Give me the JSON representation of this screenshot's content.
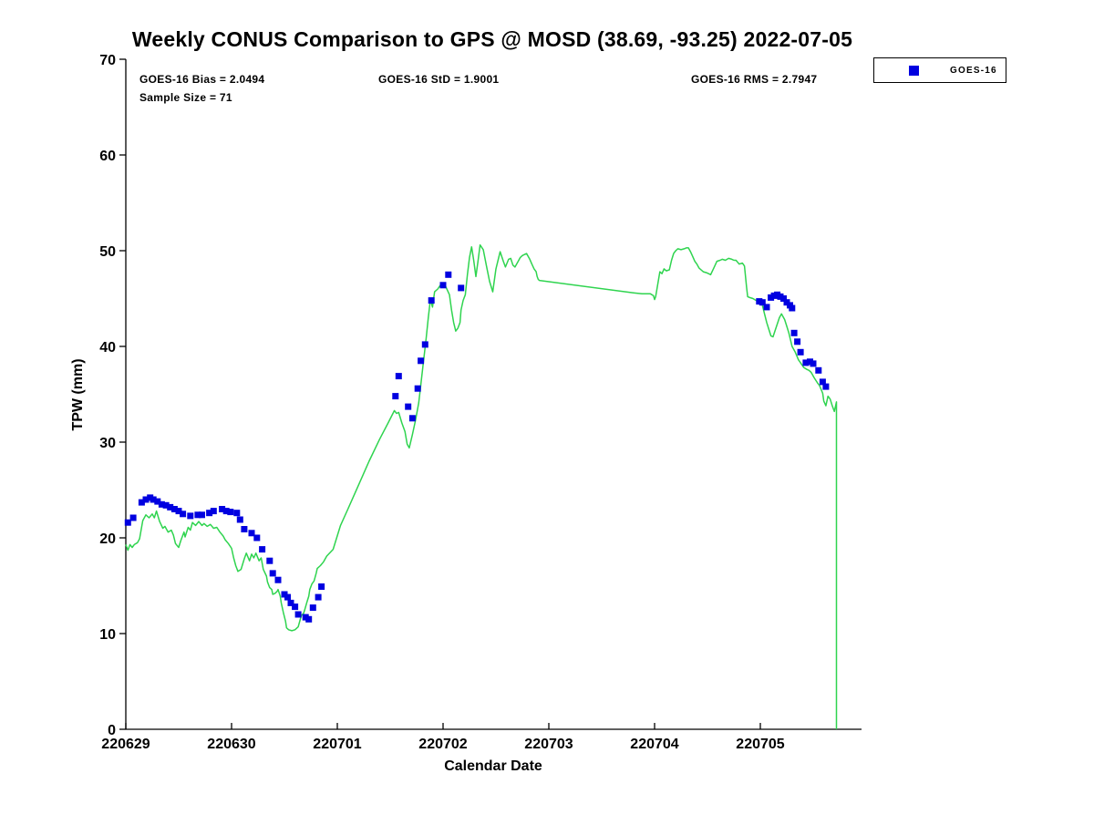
{
  "title": "Weekly CONUS Comparison to GPS @ MOSD (38.69, -93.25) 2022-07-05",
  "stats": {
    "bias": "GOES-16 Bias = 2.0494",
    "std": "GOES-16 StD = 1.9001",
    "rms": "GOES-16 RMS = 2.7947",
    "sample_size": "Sample Size = 71"
  },
  "axes": {
    "ylabel": "TPW (mm)",
    "xlabel": "Calendar Date"
  },
  "legend": {
    "entries": [
      {
        "label": "GOES-16",
        "marker_color": "#0000e0"
      }
    ]
  },
  "chart_data": {
    "type": "line",
    "title": "Weekly CONUS Comparison to GPS @ MOSD (38.69, -93.25) 2022-07-05",
    "xlabel": "Calendar Date",
    "ylabel": "TPW (mm)",
    "x_tick_labels": [
      "220629",
      "220630",
      "220701",
      "220702",
      "220703",
      "220704",
      "220705"
    ],
    "y_ticks": [
      0,
      10,
      20,
      30,
      40,
      50,
      60,
      70
    ],
    "ylim": [
      0,
      70
    ],
    "xlim_days": [
      0,
      6.96
    ],
    "grid": false,
    "legend_position": "top-right-outside",
    "stats": {
      "bias": 2.0494,
      "std": 1.9001,
      "rms": 2.7947,
      "sample_size": 71
    },
    "series": [
      {
        "name": "GPS",
        "type": "line",
        "color": "#2fd44f",
        "points": [
          [
            0.0,
            19.3
          ],
          [
            0.02,
            18.7
          ],
          [
            0.04,
            19.3
          ],
          [
            0.06,
            19.0
          ],
          [
            0.08,
            19.3
          ],
          [
            0.11,
            19.5
          ],
          [
            0.13,
            19.9
          ],
          [
            0.16,
            21.8
          ],
          [
            0.19,
            22.4
          ],
          [
            0.22,
            22.1
          ],
          [
            0.25,
            22.5
          ],
          [
            0.27,
            22.1
          ],
          [
            0.29,
            22.8
          ],
          [
            0.32,
            21.7
          ],
          [
            0.35,
            21.0
          ],
          [
            0.37,
            21.2
          ],
          [
            0.4,
            20.6
          ],
          [
            0.43,
            20.8
          ],
          [
            0.45,
            20.3
          ],
          [
            0.47,
            19.4
          ],
          [
            0.5,
            19.0
          ],
          [
            0.52,
            19.7
          ],
          [
            0.55,
            20.6
          ],
          [
            0.56,
            20.1
          ],
          [
            0.59,
            21.1
          ],
          [
            0.61,
            20.8
          ],
          [
            0.63,
            21.6
          ],
          [
            0.66,
            21.3
          ],
          [
            0.69,
            21.7
          ],
          [
            0.72,
            21.3
          ],
          [
            0.74,
            21.5
          ],
          [
            0.77,
            21.2
          ],
          [
            0.8,
            21.4
          ],
          [
            0.83,
            21.0
          ],
          [
            0.86,
            21.1
          ],
          [
            0.89,
            20.6
          ],
          [
            0.92,
            20.2
          ],
          [
            0.94,
            19.8
          ],
          [
            0.97,
            19.4
          ],
          [
            1.0,
            18.9
          ],
          [
            1.02,
            17.9
          ],
          [
            1.04,
            17.1
          ],
          [
            1.06,
            16.5
          ],
          [
            1.09,
            16.7
          ],
          [
            1.12,
            17.8
          ],
          [
            1.14,
            18.4
          ],
          [
            1.17,
            17.6
          ],
          [
            1.19,
            18.3
          ],
          [
            1.21,
            17.9
          ],
          [
            1.23,
            18.4
          ],
          [
            1.26,
            17.6
          ],
          [
            1.28,
            17.9
          ],
          [
            1.3,
            16.7
          ],
          [
            1.33,
            16.0
          ],
          [
            1.34,
            15.4
          ],
          [
            1.36,
            14.8
          ],
          [
            1.38,
            14.6
          ],
          [
            1.39,
            14.1
          ],
          [
            1.41,
            14.2
          ],
          [
            1.43,
            14.4
          ],
          [
            1.44,
            14.6
          ],
          [
            1.46,
            13.9
          ],
          [
            1.47,
            13.2
          ],
          [
            1.49,
            12.2
          ],
          [
            1.51,
            11.3
          ],
          [
            1.52,
            10.6
          ],
          [
            1.54,
            10.4
          ],
          [
            1.57,
            10.3
          ],
          [
            1.6,
            10.4
          ],
          [
            1.63,
            10.7
          ],
          [
            1.66,
            11.9
          ],
          [
            1.68,
            12.1
          ],
          [
            1.69,
            12.4
          ],
          [
            1.71,
            13.2
          ],
          [
            1.73,
            13.9
          ],
          [
            1.74,
            14.6
          ],
          [
            1.76,
            15.2
          ],
          [
            1.78,
            15.5
          ],
          [
            1.8,
            16.3
          ],
          [
            1.81,
            16.8
          ],
          [
            1.84,
            17.1
          ],
          [
            1.87,
            17.5
          ],
          [
            1.9,
            18.1
          ],
          [
            1.96,
            18.8
          ],
          [
            2.03,
            21.3
          ],
          [
            2.1,
            23.0
          ],
          [
            2.2,
            25.5
          ],
          [
            2.3,
            28.0
          ],
          [
            2.4,
            30.3
          ],
          [
            2.48,
            32.0
          ],
          [
            2.54,
            33.3
          ],
          [
            2.56,
            33.0
          ],
          [
            2.58,
            33.1
          ],
          [
            2.61,
            32.0
          ],
          [
            2.64,
            31.1
          ],
          [
            2.66,
            29.8
          ],
          [
            2.68,
            29.4
          ],
          [
            2.71,
            30.8
          ],
          [
            2.74,
            32.3
          ],
          [
            2.77,
            34.1
          ],
          [
            2.79,
            36.0
          ],
          [
            2.81,
            38.0
          ],
          [
            2.84,
            40.8
          ],
          [
            2.86,
            43.0
          ],
          [
            2.88,
            44.9
          ],
          [
            2.9,
            44.1
          ],
          [
            2.92,
            45.7
          ],
          [
            2.95,
            46.0
          ],
          [
            2.98,
            46.5
          ],
          [
            3.01,
            46.6
          ],
          [
            3.04,
            45.9
          ],
          [
            3.06,
            45.4
          ],
          [
            3.08,
            43.8
          ],
          [
            3.1,
            42.5
          ],
          [
            3.12,
            41.6
          ],
          [
            3.14,
            41.9
          ],
          [
            3.16,
            42.5
          ],
          [
            3.17,
            43.8
          ],
          [
            3.19,
            44.8
          ],
          [
            3.21,
            45.4
          ],
          [
            3.23,
            47.5
          ],
          [
            3.25,
            49.3
          ],
          [
            3.27,
            50.4
          ],
          [
            3.29,
            49.0
          ],
          [
            3.31,
            47.3
          ],
          [
            3.33,
            48.9
          ],
          [
            3.35,
            50.6
          ],
          [
            3.38,
            50.1
          ],
          [
            3.41,
            48.4
          ],
          [
            3.44,
            46.8
          ],
          [
            3.47,
            45.7
          ],
          [
            3.5,
            48.1
          ],
          [
            3.54,
            49.9
          ],
          [
            3.57,
            48.9
          ],
          [
            3.59,
            48.3
          ],
          [
            3.62,
            49.1
          ],
          [
            3.64,
            49.2
          ],
          [
            3.66,
            48.5
          ],
          [
            3.68,
            48.3
          ],
          [
            3.71,
            48.9
          ],
          [
            3.73,
            49.3
          ],
          [
            3.75,
            49.5
          ],
          [
            3.77,
            49.6
          ],
          [
            3.79,
            49.7
          ],
          [
            3.82,
            49.1
          ],
          [
            3.84,
            48.6
          ],
          [
            3.86,
            48.1
          ],
          [
            3.88,
            47.8
          ],
          [
            3.89,
            47.3
          ],
          [
            3.9,
            47.0
          ],
          [
            3.91,
            46.9
          ],
          [
            4.8,
            45.6
          ],
          [
            4.88,
            45.5
          ],
          [
            4.96,
            45.5
          ],
          [
            4.99,
            45.3
          ],
          [
            5.0,
            44.9
          ],
          [
            5.01,
            45.2
          ],
          [
            5.03,
            46.5
          ],
          [
            5.05,
            47.8
          ],
          [
            5.07,
            47.6
          ],
          [
            5.09,
            48.1
          ],
          [
            5.11,
            47.9
          ],
          [
            5.14,
            48.0
          ],
          [
            5.16,
            49.0
          ],
          [
            5.18,
            49.7
          ],
          [
            5.2,
            50.0
          ],
          [
            5.22,
            50.2
          ],
          [
            5.25,
            50.1
          ],
          [
            5.28,
            50.2
          ],
          [
            5.3,
            50.3
          ],
          [
            5.32,
            50.3
          ],
          [
            5.34,
            49.9
          ],
          [
            5.36,
            49.4
          ],
          [
            5.38,
            48.9
          ],
          [
            5.4,
            48.6
          ],
          [
            5.42,
            48.2
          ],
          [
            5.44,
            48.0
          ],
          [
            5.46,
            47.8
          ],
          [
            5.49,
            47.7
          ],
          [
            5.51,
            47.6
          ],
          [
            5.53,
            47.5
          ],
          [
            5.56,
            48.2
          ],
          [
            5.59,
            48.9
          ],
          [
            5.62,
            49.0
          ],
          [
            5.64,
            49.1
          ],
          [
            5.67,
            49.0
          ],
          [
            5.7,
            49.2
          ],
          [
            5.73,
            49.1
          ],
          [
            5.75,
            49.0
          ],
          [
            5.77,
            49.0
          ],
          [
            5.8,
            48.6
          ],
          [
            5.83,
            48.7
          ],
          [
            5.85,
            48.4
          ],
          [
            5.87,
            46.2
          ],
          [
            5.88,
            45.2
          ],
          [
            5.9,
            45.1
          ],
          [
            5.93,
            45.0
          ],
          [
            5.96,
            44.8
          ],
          [
            5.99,
            44.7
          ],
          [
            6.02,
            44.3
          ],
          [
            6.04,
            43.4
          ],
          [
            6.06,
            42.5
          ],
          [
            6.08,
            41.8
          ],
          [
            6.1,
            41.1
          ],
          [
            6.12,
            41.0
          ],
          [
            6.15,
            42.0
          ],
          [
            6.18,
            43.0
          ],
          [
            6.2,
            43.4
          ],
          [
            6.23,
            42.8
          ],
          [
            6.25,
            42.1
          ],
          [
            6.27,
            41.4
          ],
          [
            6.3,
            40.0
          ],
          [
            6.33,
            39.4
          ],
          [
            6.36,
            38.6
          ],
          [
            6.38,
            38.3
          ],
          [
            6.41,
            37.8
          ],
          [
            6.44,
            37.6
          ],
          [
            6.46,
            37.5
          ],
          [
            6.48,
            37.3
          ],
          [
            6.51,
            36.7
          ],
          [
            6.54,
            36.2
          ],
          [
            6.56,
            35.9
          ],
          [
            6.59,
            35.1
          ],
          [
            6.6,
            34.3
          ],
          [
            6.62,
            33.8
          ],
          [
            6.64,
            34.8
          ],
          [
            6.66,
            34.5
          ],
          [
            6.68,
            33.8
          ],
          [
            6.7,
            33.2
          ],
          [
            6.72,
            34.2
          ],
          [
            6.72,
            0.0
          ]
        ]
      },
      {
        "name": "GOES-16",
        "type": "scatter",
        "marker": "square",
        "color": "#0000e0",
        "points": [
          [
            0.02,
            21.6
          ],
          [
            0.07,
            22.1
          ],
          [
            0.15,
            23.7
          ],
          [
            0.19,
            24.0
          ],
          [
            0.23,
            24.2
          ],
          [
            0.26,
            24.0
          ],
          [
            0.3,
            23.8
          ],
          [
            0.34,
            23.5
          ],
          [
            0.38,
            23.4
          ],
          [
            0.42,
            23.2
          ],
          [
            0.46,
            23.0
          ],
          [
            0.5,
            22.8
          ],
          [
            0.54,
            22.5
          ],
          [
            0.61,
            22.3
          ],
          [
            0.68,
            22.4
          ],
          [
            0.72,
            22.4
          ],
          [
            0.79,
            22.6
          ],
          [
            0.83,
            22.8
          ],
          [
            0.91,
            23.0
          ],
          [
            0.95,
            22.8
          ],
          [
            0.99,
            22.7
          ],
          [
            1.05,
            22.6
          ],
          [
            1.08,
            21.9
          ],
          [
            1.12,
            20.9
          ],
          [
            1.19,
            20.5
          ],
          [
            1.24,
            20.0
          ],
          [
            1.29,
            18.8
          ],
          [
            1.36,
            17.6
          ],
          [
            1.39,
            16.3
          ],
          [
            1.44,
            15.6
          ],
          [
            1.5,
            14.1
          ],
          [
            1.53,
            13.8
          ],
          [
            1.56,
            13.2
          ],
          [
            1.6,
            12.8
          ],
          [
            1.63,
            12.0
          ],
          [
            1.7,
            11.7
          ],
          [
            1.73,
            11.5
          ],
          [
            1.77,
            12.7
          ],
          [
            1.82,
            13.8
          ],
          [
            1.85,
            14.9
          ],
          [
            2.55,
            34.8
          ],
          [
            2.58,
            36.9
          ],
          [
            2.67,
            33.7
          ],
          [
            2.71,
            32.5
          ],
          [
            2.76,
            35.6
          ],
          [
            2.79,
            38.5
          ],
          [
            2.83,
            40.2
          ],
          [
            2.89,
            44.8
          ],
          [
            3.0,
            46.4
          ],
          [
            3.05,
            47.5
          ],
          [
            3.17,
            46.1
          ],
          [
            5.99,
            44.7
          ],
          [
            6.02,
            44.6
          ],
          [
            6.06,
            44.1
          ],
          [
            6.1,
            45.1
          ],
          [
            6.13,
            45.3
          ],
          [
            6.16,
            45.4
          ],
          [
            6.19,
            45.2
          ],
          [
            6.22,
            45.0
          ],
          [
            6.25,
            44.6
          ],
          [
            6.28,
            44.3
          ],
          [
            6.3,
            44.0
          ],
          [
            6.32,
            41.4
          ],
          [
            6.35,
            40.5
          ],
          [
            6.38,
            39.4
          ],
          [
            6.43,
            38.3
          ],
          [
            6.47,
            38.4
          ],
          [
            6.5,
            38.2
          ],
          [
            6.55,
            37.5
          ],
          [
            6.59,
            36.3
          ],
          [
            6.62,
            35.8
          ]
        ]
      }
    ]
  }
}
